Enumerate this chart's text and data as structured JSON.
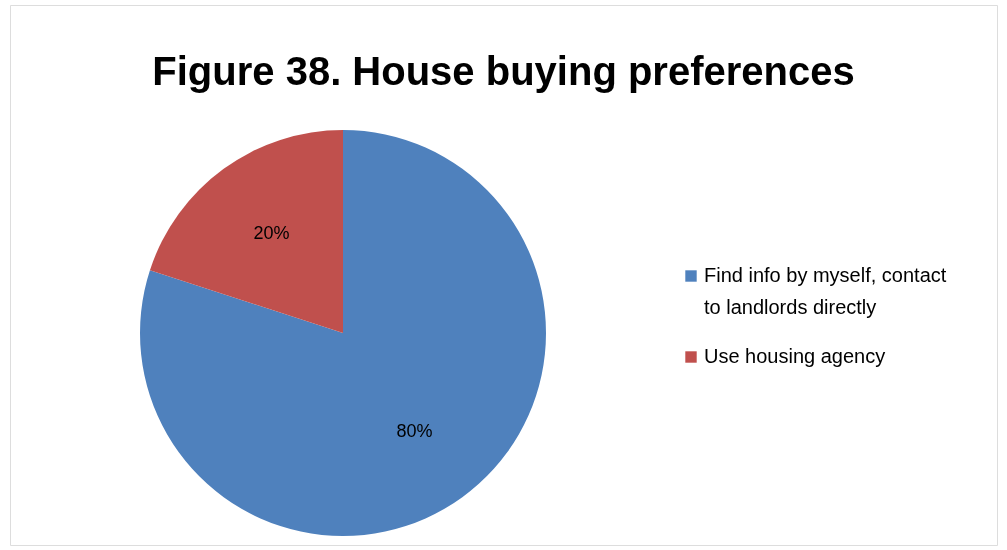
{
  "chart_data": {
    "type": "pie",
    "title": "Figure 38. House buying preferences",
    "categories": [
      "Find info by myself, contact to landlords directly",
      "Use housing agency"
    ],
    "values": [
      80,
      20
    ],
    "colors": [
      "#4f81bd",
      "#c0504d"
    ],
    "value_labels": [
      "80%",
      "20%"
    ],
    "legend": "right"
  }
}
